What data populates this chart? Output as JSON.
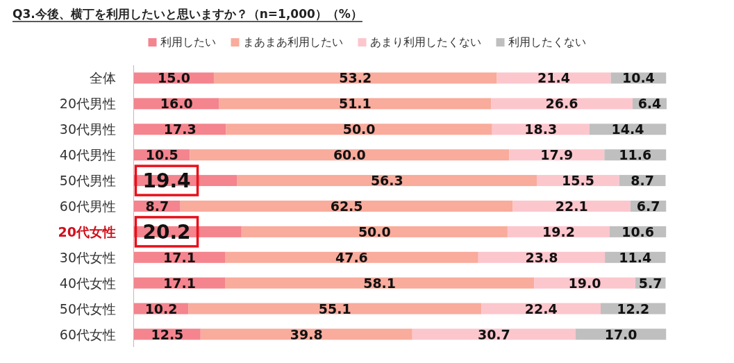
{
  "chart_data": {
    "type": "bar",
    "orientation": "horizontal",
    "stacked": true,
    "legend": "top",
    "title": "Q3.今後、横丁を利用したいと思いますか？（n=1,000）（%）",
    "categories": [
      "全体",
      "20代男性",
      "30代男性",
      "40代男性",
      "50代男性",
      "60代男性",
      "20代女性",
      "30代女性",
      "40代女性",
      "50代女性",
      "60代女性"
    ],
    "series": [
      {
        "name": "利用したい",
        "color": "#f4848e",
        "values": [
          15.0,
          16.0,
          17.3,
          10.5,
          19.4,
          8.7,
          20.2,
          17.1,
          17.1,
          10.2,
          12.5
        ],
        "value_labels": [
          "15.0",
          "16.0",
          "17.3",
          "10.5",
          "19.4",
          "8.7",
          "20.2",
          "17.1",
          "17.1",
          "10.2",
          "12.5"
        ]
      },
      {
        "name": "まあまあ利用したい",
        "color": "#f9ab9c",
        "values": [
          53.2,
          51.1,
          50.0,
          60.0,
          56.3,
          62.5,
          50.0,
          47.6,
          58.1,
          55.1,
          39.8
        ],
        "value_labels": [
          "53.2",
          "51.1",
          "50.0",
          "60.0",
          "56.3",
          "62.5",
          "50.0",
          "47.6",
          "58.1",
          "55.1",
          "39.8"
        ]
      },
      {
        "name": "あまり利用したくない",
        "color": "#fcc6cd",
        "values": [
          21.4,
          26.6,
          18.3,
          17.9,
          15.5,
          22.1,
          19.2,
          23.8,
          19.0,
          22.4,
          30.7
        ],
        "value_labels": [
          "21.4",
          "26.6",
          "18.3",
          "17.9",
          "15.5",
          "22.1",
          "19.2",
          "23.8",
          "19.0",
          "22.4",
          "30.7"
        ]
      },
      {
        "name": "利用したくない",
        "color": "#bfbfbf",
        "values": [
          10.4,
          6.4,
          14.4,
          11.6,
          8.7,
          6.7,
          10.6,
          11.4,
          5.7,
          12.2,
          17.0
        ],
        "value_labels": [
          "10.4",
          "6.4",
          "14.4",
          "11.6",
          "8.7",
          "6.7",
          "10.6",
          "11.4",
          "5.7",
          "12.2",
          "17.0"
        ]
      }
    ]
  }
}
